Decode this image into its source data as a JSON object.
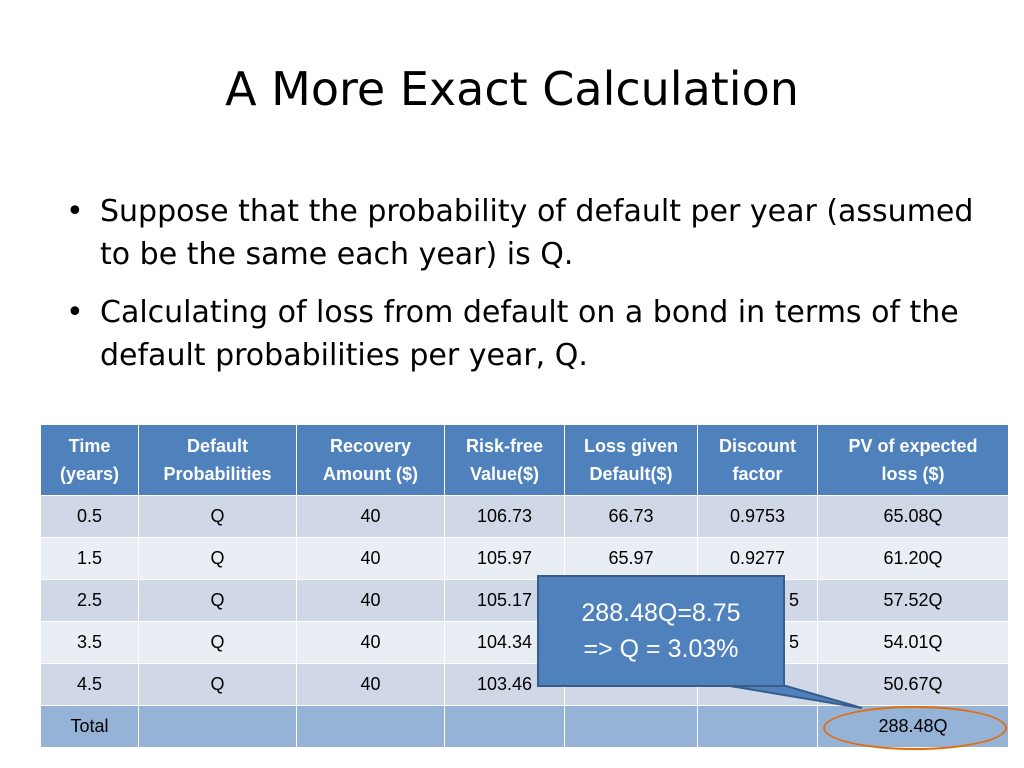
{
  "slide": {
    "title": "A More Exact Calculation",
    "bullets": [
      "Suppose that the probability of default per year (assumed to be the same each year) is Q.",
      "Calculating of loss from default on a bond in terms of the default probabilities per year, Q."
    ]
  },
  "table": {
    "headers": [
      [
        "Time",
        "(years)"
      ],
      [
        "Default",
        "Probabilities"
      ],
      [
        "Recovery",
        "Amount ($)"
      ],
      [
        "Risk-free",
        "Value($)"
      ],
      [
        "Loss given",
        "Default($)"
      ],
      [
        "Discount",
        "factor"
      ],
      [
        "PV of expected",
        "loss ($)"
      ]
    ],
    "rows": [
      [
        "0.5",
        "Q",
        "40",
        "106.73",
        "66.73",
        "0.9753",
        "65.08Q"
      ],
      [
        "1.5",
        "Q",
        "40",
        "105.97",
        "65.97",
        "0.9277",
        "61.20Q"
      ],
      [
        "2.5",
        "Q",
        "40",
        "105.17",
        "",
        "5",
        "57.52Q"
      ],
      [
        "3.5",
        "Q",
        "40",
        "104.34",
        "",
        "5",
        "54.01Q"
      ],
      [
        "4.5",
        "Q",
        "40",
        "103.46",
        "",
        "",
        "50.67Q"
      ]
    ],
    "total": [
      "Total",
      "",
      "",
      "",
      "",
      "",
      "288.48Q"
    ]
  },
  "callout": {
    "line1": "288.48Q=8.75",
    "line2": "=>  Q = 3.03%"
  },
  "colors": {
    "header": "#4f81bd",
    "row_odd": "#d0d8e8",
    "row_even": "#e9edf4",
    "total_row": "#95b3d7",
    "highlight_ellipse": "#e46c0a"
  }
}
